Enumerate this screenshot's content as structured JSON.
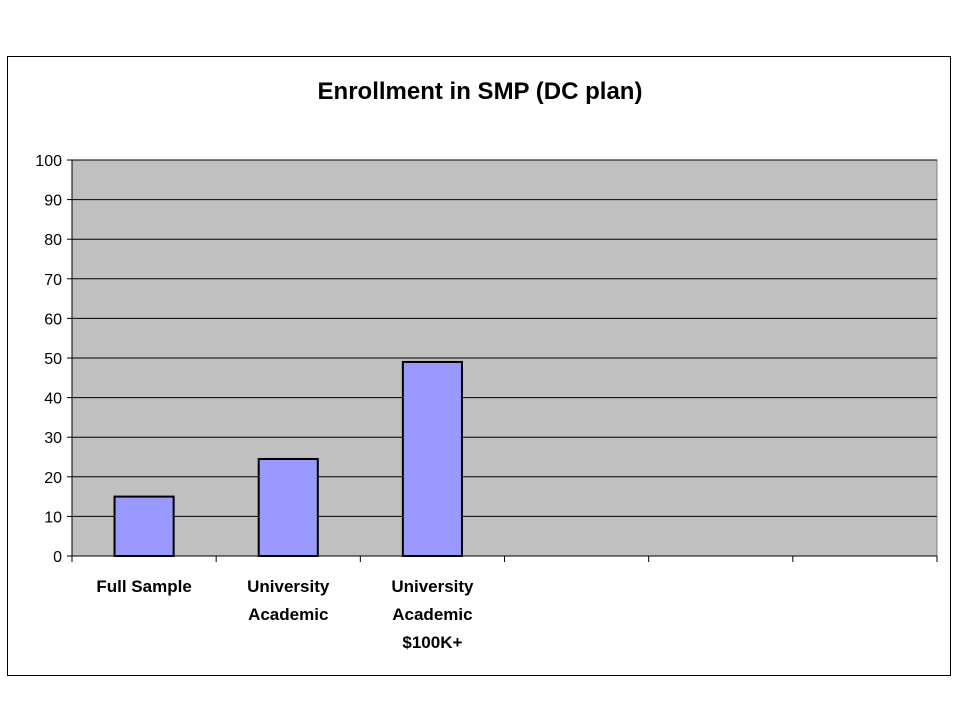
{
  "chart_data": {
    "type": "bar",
    "title": "Enrollment in SMP (DC plan)",
    "xlabel": "",
    "ylabel": "",
    "categories": [
      [
        "Full Sample"
      ],
      [
        "University",
        "Academic"
      ],
      [
        "University",
        "Academic",
        "$100K+"
      ],
      [
        ""
      ],
      [
        ""
      ],
      [
        ""
      ]
    ],
    "values": [
      15,
      24.5,
      49,
      null,
      null,
      null
    ],
    "ylim": [
      0,
      100
    ],
    "yticks": [
      0,
      10,
      20,
      30,
      40,
      50,
      60,
      70,
      80,
      90,
      100
    ],
    "grid": true,
    "legend": "none",
    "colors": {
      "plot_background": "#c0c0c0",
      "bar_fill": "#9999ff",
      "bar_stroke": "#000000",
      "gridline": "#000000"
    }
  }
}
